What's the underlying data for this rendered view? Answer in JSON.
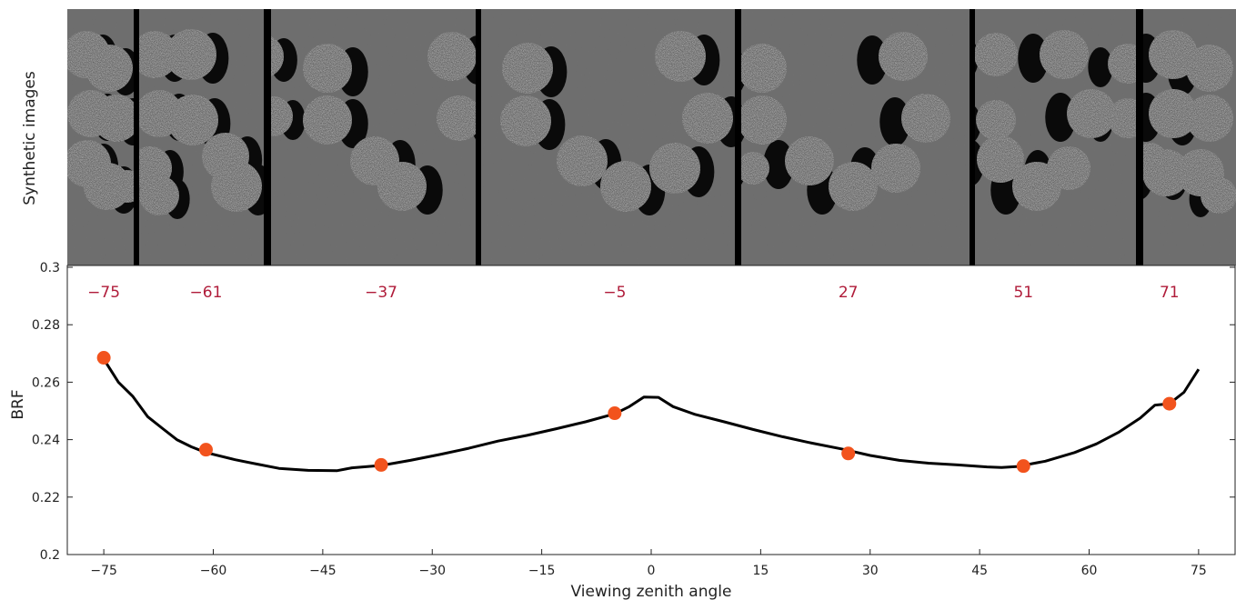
{
  "panel_top": {
    "ylabel": "Synthetic images",
    "panel_angles": [
      "-75",
      "-61",
      "-37",
      "-5",
      "27",
      "51",
      "71"
    ]
  },
  "chart_data": {
    "type": "line",
    "xlabel": "Viewing zenith angle",
    "ylabel": "BRF",
    "xlim": [
      -80,
      80
    ],
    "ylim": [
      0.2,
      0.3
    ],
    "xticks": [
      -75,
      -60,
      -45,
      -30,
      -15,
      0,
      15,
      30,
      45,
      60,
      75
    ],
    "yticks": [
      0.2,
      0.22,
      0.24,
      0.26,
      0.28,
      0.3
    ],
    "xtick_labels": [
      "−75",
      "−60",
      "−45",
      "−30",
      "−15",
      "0",
      "15",
      "30",
      "45",
      "60",
      "75"
    ],
    "ytick_labels": [
      "0.2",
      "0.22",
      "0.24",
      "0.26",
      "0.28",
      "0.3"
    ],
    "grid": false,
    "series": [
      {
        "color": "#000000",
        "x": [
          -75,
          -73,
          -71,
          -69,
          -67,
          -65,
          -63,
          -61,
          -57,
          -54,
          -51,
          -47,
          -43,
          -41,
          -37,
          -33,
          -29,
          -25,
          -21,
          -17,
          -13,
          -9,
          -5,
          -3,
          -1,
          1,
          3,
          6,
          10,
          14,
          18,
          22,
          26,
          30,
          34,
          38,
          42,
          46,
          48,
          50,
          54,
          58,
          61,
          64,
          67,
          69,
          71,
          73,
          75
        ],
        "y": [
          0.268,
          0.26,
          0.255,
          0.248,
          0.244,
          0.24,
          0.2375,
          0.2355,
          0.233,
          0.2315,
          0.23,
          0.2293,
          0.2292,
          0.2302,
          0.231,
          0.2328,
          0.2348,
          0.237,
          0.2395,
          0.2415,
          0.2438,
          0.2462,
          0.249,
          0.2515,
          0.2548,
          0.2547,
          0.2515,
          0.2488,
          0.2462,
          0.2435,
          0.241,
          0.2388,
          0.2368,
          0.2345,
          0.2328,
          0.2318,
          0.2312,
          0.2305,
          0.2303,
          0.2306,
          0.2325,
          0.2355,
          0.2385,
          0.2425,
          0.2475,
          0.252,
          0.2525,
          0.2565,
          0.2645
        ]
      },
      {
        "type": "scatter",
        "color": "#f2531d",
        "x": [
          -75,
          -61,
          -37,
          -5,
          27,
          51,
          71
        ],
        "y": [
          0.2685,
          0.2365,
          0.2312,
          0.2492,
          0.2352,
          0.2308,
          0.2525
        ]
      }
    ]
  },
  "colors": {
    "angle_label": "#b01c3a",
    "panel_background": "#6e6e6e",
    "panel_divider": "#000000",
    "sphere": "#c9c9c9",
    "shadow": "#0a0a0a"
  }
}
